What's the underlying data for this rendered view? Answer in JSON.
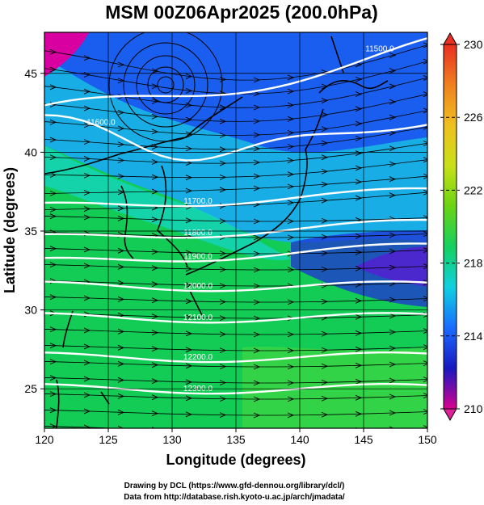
{
  "title": "MSM 00Z06Apr2025 (200.0hPa)",
  "xlabel": "Longitude (degrees)",
  "ylabel": "Latitude  (degrees)",
  "credits": [
    "Drawing by DCL (https://www.gfd-dennou.org/library/dcl/)",
    "Data from http://database.rish.kyoto-u.ac.jp/arch/jmadata/"
  ],
  "map": {
    "lon_range": [
      120,
      150
    ],
    "lat_range": [
      22.5,
      47.6
    ],
    "lon_ticks": [
      "120",
      "125",
      "130",
      "135",
      "140",
      "145",
      "150"
    ],
    "lat_ticks": [
      "25",
      "30",
      "35",
      "40",
      "45"
    ],
    "field": "temperature (shaded), geopotential height contours (white), streamlines (black)"
  },
  "colorbar": {
    "min": 210,
    "max": 230,
    "ticks": [
      "230",
      "226",
      "222",
      "218",
      "214",
      "210"
    ],
    "colors": [
      "#d90090",
      "#1818c0",
      "#1a6cff",
      "#10d0e0",
      "#14d060",
      "#6ad414",
      "#c8e018",
      "#f0c020",
      "#f08020",
      "#e83020"
    ]
  },
  "contours": [
    {
      "label": "11500.0",
      "lat": 45.3
    },
    {
      "label": "11600.0",
      "lat": 39.5
    },
    {
      "label": "11700.0",
      "lat": 37.0
    },
    {
      "label": "11800.0",
      "lat": 35.0
    },
    {
      "label": "11900.0",
      "lat": 33.5
    },
    {
      "label": "12000.0",
      "lat": 31.5
    },
    {
      "label": "12100.0",
      "lat": 29.5
    },
    {
      "label": "12200.0",
      "lat": 27.0
    },
    {
      "label": "12300.0",
      "lat": 25.0
    }
  ]
}
